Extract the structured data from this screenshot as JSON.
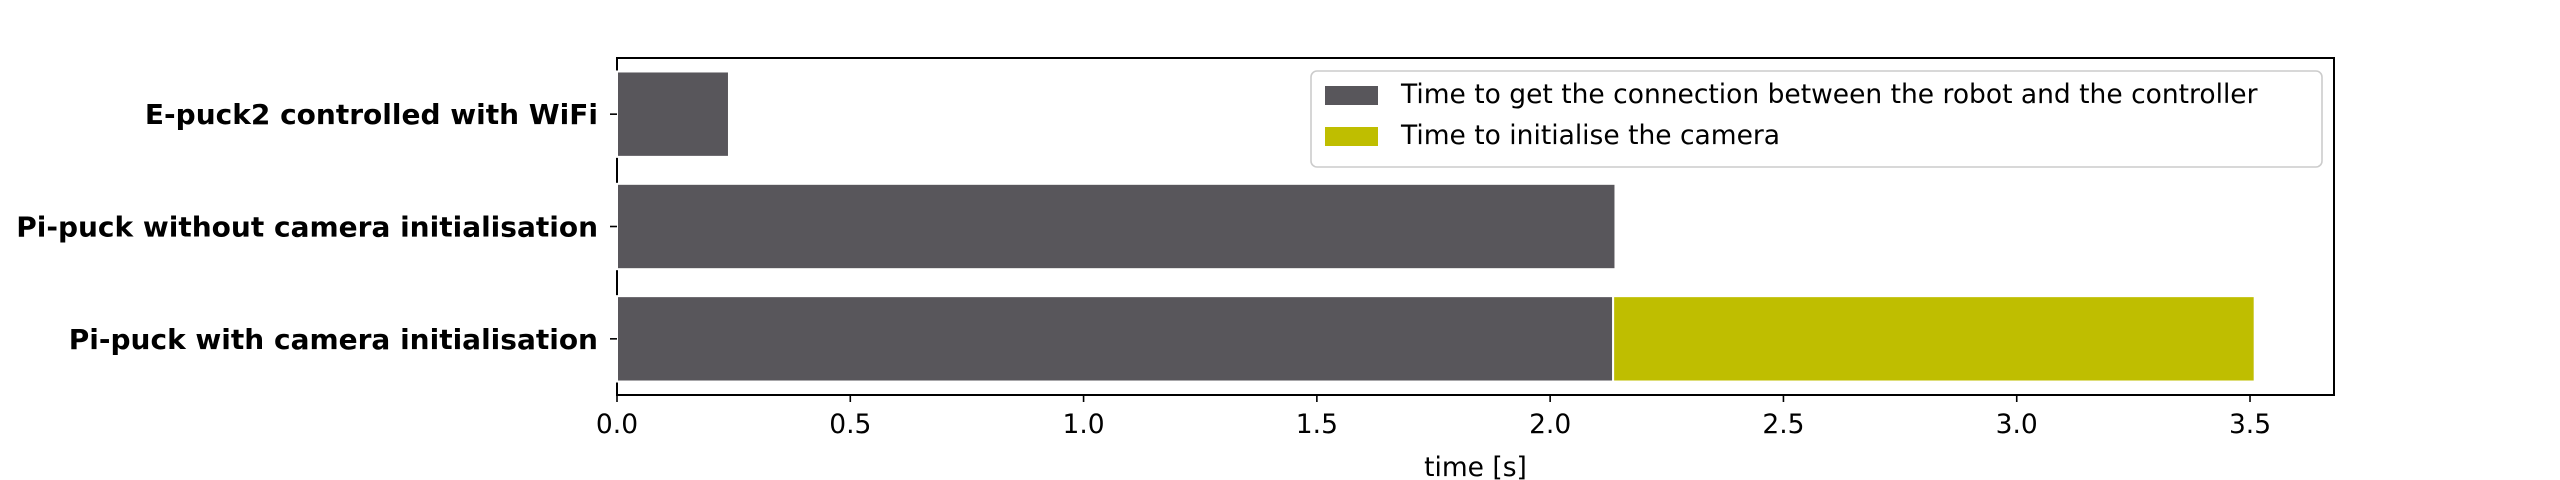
{
  "chart_data": {
    "type": "bar",
    "orientation": "horizontal",
    "stacked": true,
    "categories": [
      "E-puck2 controlled with WiFi",
      "Pi-puck without camera initialisation",
      "Pi-puck with camera initialisation"
    ],
    "series": [
      {
        "name": "Time to get the connection between the robot and the controller",
        "color": "#58565b",
        "values": [
          0.24,
          2.14,
          2.135
        ]
      },
      {
        "name": "Time to initialise the camera",
        "color": "#bfbe00",
        "values": [
          0,
          0,
          1.375
        ]
      }
    ],
    "title": "",
    "xlabel": "time [s]",
    "ylabel": "",
    "xlim": [
      0,
      3.68
    ],
    "xticks": [
      0.0,
      0.5,
      1.0,
      1.5,
      2.0,
      2.5,
      3.0,
      3.5
    ],
    "xtick_labels": [
      "0.0",
      "0.5",
      "1.0",
      "1.5",
      "2.0",
      "2.5",
      "3.0",
      "3.5"
    ],
    "grid": false,
    "legend_position": "top-right"
  }
}
